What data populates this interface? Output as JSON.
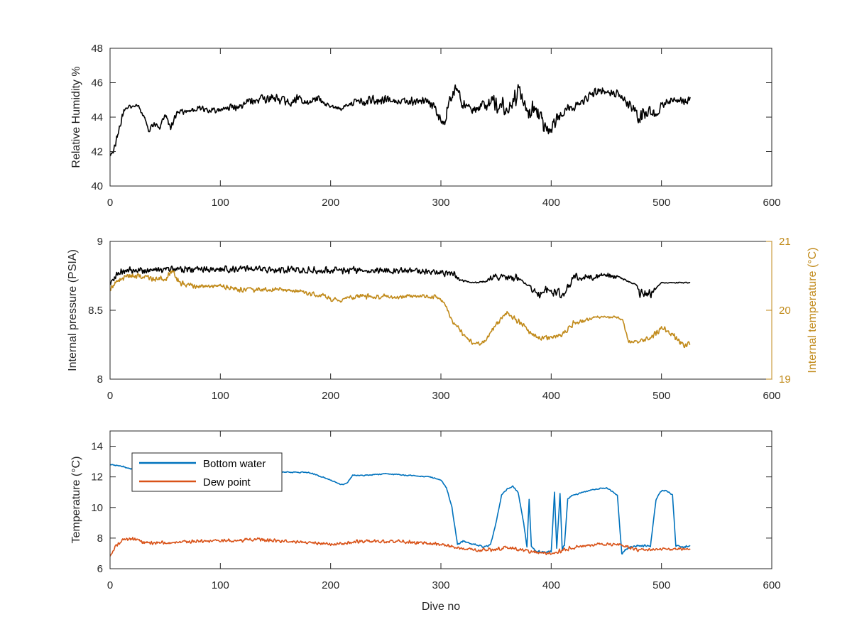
{
  "chart_data": [
    {
      "type": "line",
      "id": "humidity",
      "title": "",
      "xlabel": "",
      "ylabel": "Relative Humidity %",
      "xlim": [
        0,
        600
      ],
      "ylim": [
        40,
        48
      ],
      "xticks": [
        0,
        100,
        200,
        300,
        400,
        500,
        600
      ],
      "yticks": [
        40,
        42,
        44,
        46,
        48
      ],
      "grid": false,
      "series": [
        {
          "color": "#000000",
          "x": [
            0,
            3,
            8,
            12,
            16,
            20,
            25,
            30,
            35,
            40,
            45,
            50,
            55,
            60,
            65,
            70,
            80,
            90,
            100,
            110,
            120,
            130,
            140,
            150,
            160,
            170,
            180,
            190,
            200,
            210,
            220,
            230,
            240,
            250,
            260,
            270,
            280,
            290,
            295,
            300,
            305,
            310,
            315,
            320,
            325,
            330,
            340,
            350,
            360,
            370,
            375,
            380,
            385,
            390,
            395,
            400,
            405,
            410,
            415,
            420,
            430,
            440,
            450,
            460,
            470,
            475,
            480,
            485,
            490,
            495,
            500,
            510,
            520,
            526
          ],
          "y": [
            41.7,
            42.0,
            43.2,
            44.2,
            44.6,
            44.6,
            44.7,
            44.1,
            43.3,
            43.6,
            43.4,
            44.2,
            43.4,
            44.2,
            44.3,
            44.3,
            44.5,
            44.4,
            44.4,
            44.6,
            44.7,
            44.9,
            45.0,
            45.1,
            44.9,
            45.0,
            44.9,
            45.0,
            44.6,
            44.5,
            44.8,
            44.9,
            45.0,
            45.1,
            44.9,
            44.9,
            44.9,
            44.8,
            44.5,
            43.6,
            44.2,
            45.4,
            45.6,
            44.7,
            44.6,
            44.4,
            44.7,
            44.8,
            44.5,
            45.5,
            44.8,
            44.2,
            44.4,
            44.0,
            43.4,
            43.1,
            44.0,
            44.3,
            44.6,
            44.6,
            45.0,
            45.4,
            45.6,
            45.4,
            44.8,
            44.5,
            43.8,
            44.3,
            44.4,
            44.2,
            44.7,
            44.9,
            45.0,
            44.9
          ],
          "noise": [
            0.25,
            0.2,
            0.35,
            0.25,
            0.1,
            0.15,
            0.1,
            0.15,
            0.2,
            0.2,
            0.15,
            0.2,
            0.2,
            0.25,
            0.2,
            0.2,
            0.2,
            0.2,
            0.2,
            0.25,
            0.3,
            0.3,
            0.35,
            0.35,
            0.3,
            0.35,
            0.3,
            0.3,
            0.15,
            0.15,
            0.25,
            0.3,
            0.4,
            0.45,
            0.3,
            0.25,
            0.3,
            0.3,
            0.4,
            0.5,
            0.6,
            0.5,
            0.45,
            0.45,
            0.35,
            0.35,
            0.5,
            0.6,
            0.6,
            0.7,
            0.6,
            0.6,
            0.8,
            0.8,
            0.6,
            0.6,
            0.4,
            0.4,
            0.3,
            0.3,
            0.3,
            0.35,
            0.35,
            0.3,
            0.35,
            0.5,
            0.6,
            0.6,
            0.5,
            0.3,
            0.3,
            0.25,
            0.3,
            0.3
          ]
        }
      ]
    },
    {
      "type": "line",
      "id": "pressure_temperature",
      "title": "",
      "xlabel": "",
      "ylabel": "Internal pressure (PSIA)",
      "ylabel_right": "Internal temperature (°C)",
      "xlim": [
        0,
        600
      ],
      "ylim": [
        8,
        9
      ],
      "ylim_right": [
        19,
        21
      ],
      "xticks": [
        0,
        100,
        200,
        300,
        400,
        500,
        600
      ],
      "yticks": [
        8,
        8.5,
        9
      ],
      "yticks_right": [
        19,
        20,
        21
      ],
      "grid": false,
      "series": [
        {
          "axis": "left",
          "color": "#000000",
          "x": [
            0,
            10,
            100,
            200,
            260,
            295,
            310,
            318,
            330,
            340,
            345,
            370,
            375,
            380,
            385,
            390,
            395,
            400,
            410,
            415,
            420,
            450,
            465,
            470,
            478,
            480,
            490,
            495,
            500,
            526
          ],
          "y": [
            8.7,
            8.79,
            8.8,
            8.79,
            8.79,
            8.78,
            8.77,
            8.72,
            8.7,
            8.71,
            8.74,
            8.74,
            8.7,
            8.68,
            8.63,
            8.62,
            8.66,
            8.62,
            8.62,
            8.67,
            8.74,
            8.75,
            8.73,
            8.71,
            8.68,
            8.62,
            8.62,
            8.66,
            8.7,
            8.7
          ],
          "noise": [
            0.02,
            0.03,
            0.03,
            0.03,
            0.03,
            0.03,
            0.03,
            0.01,
            0.005,
            0.01,
            0.03,
            0.03,
            0.005,
            0.01,
            0.04,
            0.04,
            0.04,
            0.04,
            0.04,
            0.03,
            0.03,
            0.03,
            0.01,
            0.005,
            0.005,
            0.04,
            0.04,
            0.005,
            0.005,
            0.005
          ]
        },
        {
          "axis": "right",
          "color": "#C18A1A",
          "x": [
            0,
            5,
            10,
            20,
            30,
            40,
            50,
            58,
            60,
            70,
            80,
            100,
            120,
            140,
            160,
            180,
            195,
            200,
            210,
            230,
            250,
            260,
            280,
            295,
            300,
            305,
            310,
            320,
            330,
            340,
            350,
            360,
            370,
            380,
            390,
            400,
            410,
            420,
            430,
            440,
            450,
            460,
            465,
            470,
            480,
            490,
            500,
            510,
            520,
            526
          ],
          "y": [
            20.3,
            20.4,
            20.45,
            20.5,
            20.5,
            20.45,
            20.45,
            20.6,
            20.45,
            20.35,
            20.35,
            20.35,
            20.3,
            20.3,
            20.3,
            20.25,
            20.2,
            20.15,
            20.15,
            20.2,
            20.2,
            20.2,
            20.2,
            20.2,
            20.15,
            20.05,
            19.85,
            19.65,
            19.5,
            19.55,
            19.8,
            19.95,
            19.85,
            19.7,
            19.6,
            19.6,
            19.65,
            19.8,
            19.85,
            19.9,
            19.9,
            19.9,
            19.85,
            19.55,
            19.55,
            19.6,
            19.75,
            19.65,
            19.5,
            19.5
          ],
          "noise": [
            0.04,
            0.05,
            0.05,
            0.05,
            0.05,
            0.06,
            0.06,
            0.05,
            0.06,
            0.05,
            0.05,
            0.04,
            0.05,
            0.05,
            0.04,
            0.04,
            0.04,
            0.04,
            0.04,
            0.05,
            0.04,
            0.04,
            0.03,
            0.05,
            0.03,
            0.03,
            0.04,
            0.05,
            0.03,
            0.04,
            0.05,
            0.04,
            0.05,
            0.05,
            0.05,
            0.04,
            0.05,
            0.05,
            0.04,
            0.02,
            0.02,
            0.02,
            0.02,
            0.03,
            0.03,
            0.05,
            0.05,
            0.05,
            0.06,
            0.06
          ]
        }
      ]
    },
    {
      "type": "line",
      "id": "temperatures",
      "title": "",
      "xlabel": "Dive no",
      "ylabel": "Temperature (°C)",
      "xlim": [
        0,
        600
      ],
      "ylim": [
        6,
        15
      ],
      "xticks": [
        0,
        100,
        200,
        300,
        400,
        500,
        600
      ],
      "yticks": [
        6,
        8,
        10,
        12,
        14
      ],
      "grid": false,
      "legend": "top-left",
      "series": [
        {
          "name": "Bottom water",
          "color": "#0072BD",
          "x": [
            0,
            10,
            20,
            40,
            60,
            80,
            100,
            120,
            140,
            160,
            180,
            200,
            210,
            215,
            220,
            230,
            250,
            270,
            290,
            300,
            305,
            310,
            315,
            320,
            340,
            345,
            350,
            355,
            360,
            365,
            370,
            375,
            378,
            380,
            382,
            385,
            390,
            400,
            403,
            405,
            408,
            410,
            412,
            415,
            420,
            430,
            440,
            450,
            460,
            464,
            470,
            480,
            490,
            495,
            500,
            505,
            510,
            513,
            520,
            526
          ],
          "y": [
            12.8,
            12.7,
            12.5,
            12.4,
            12.4,
            12.4,
            12.4,
            12.3,
            12.3,
            12.3,
            12.3,
            11.8,
            11.5,
            11.6,
            12.1,
            12.1,
            12.2,
            12.1,
            12.0,
            11.8,
            11.3,
            10.0,
            7.6,
            7.8,
            7.4,
            7.6,
            9.0,
            10.8,
            11.2,
            11.4,
            11.0,
            9.0,
            7.4,
            10.5,
            7.5,
            7.2,
            7.1,
            7.1,
            11.0,
            7.3,
            10.9,
            7.3,
            7.5,
            10.6,
            10.8,
            11.0,
            11.2,
            11.3,
            10.8,
            7.0,
            7.4,
            7.5,
            7.5,
            10.5,
            11.1,
            11.1,
            10.8,
            7.5,
            7.4,
            7.5
          ],
          "noise": [
            0.05,
            0.05,
            0.05,
            0.04,
            0.04,
            0.04,
            0.04,
            0.04,
            0.04,
            0.04,
            0.04,
            0.04,
            0.04,
            0.04,
            0.04,
            0.04,
            0.04,
            0.04,
            0.04,
            0.04,
            0.04,
            0.04,
            0.08,
            0.08,
            0.08,
            0.06,
            0.05,
            0.05,
            0.05,
            0.05,
            0.05,
            0.05,
            0.08,
            0.05,
            0.08,
            0.08,
            0.08,
            0.08,
            0.05,
            0.08,
            0.05,
            0.08,
            0.08,
            0.05,
            0.05,
            0.05,
            0.05,
            0.05,
            0.05,
            0.08,
            0.08,
            0.08,
            0.08,
            0.05,
            0.05,
            0.05,
            0.05,
            0.08,
            0.08,
            0.08
          ]
        },
        {
          "name": "Dew point",
          "color": "#D95319",
          "x": [
            0,
            5,
            10,
            20,
            30,
            50,
            80,
            100,
            130,
            160,
            200,
            230,
            260,
            300,
            320,
            340,
            360,
            380,
            400,
            420,
            440,
            460,
            480,
            500,
            526
          ],
          "y": [
            6.8,
            7.5,
            7.8,
            8.0,
            7.7,
            7.7,
            7.8,
            7.8,
            7.9,
            7.8,
            7.6,
            7.8,
            7.8,
            7.6,
            7.3,
            7.2,
            7.4,
            7.1,
            7.0,
            7.4,
            7.6,
            7.6,
            7.2,
            7.3,
            7.3
          ],
          "noise": [
            0.1,
            0.15,
            0.15,
            0.15,
            0.15,
            0.12,
            0.12,
            0.12,
            0.15,
            0.12,
            0.1,
            0.15,
            0.15,
            0.12,
            0.12,
            0.15,
            0.15,
            0.15,
            0.15,
            0.15,
            0.12,
            0.12,
            0.12,
            0.1,
            0.1
          ]
        }
      ]
    }
  ]
}
